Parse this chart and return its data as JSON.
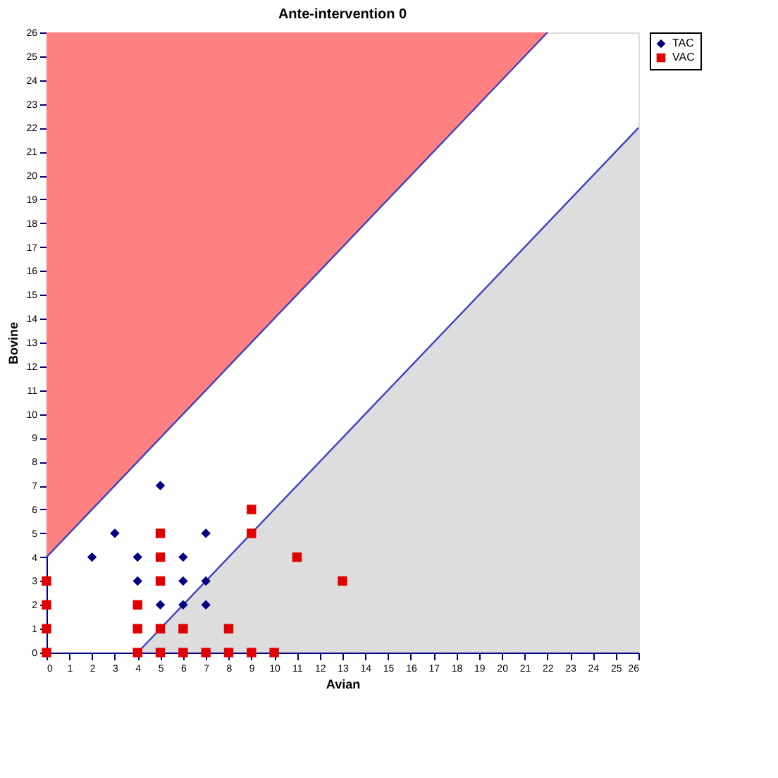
{
  "chart_data": {
    "type": "scatter",
    "title": "Ante-intervention 0",
    "xlabel": "Avian",
    "ylabel": "Bovine",
    "xlim": [
      0,
      26
    ],
    "ylim": [
      0,
      26
    ],
    "xticks": [
      0,
      1,
      2,
      3,
      4,
      5,
      6,
      7,
      8,
      9,
      10,
      11,
      12,
      13,
      14,
      15,
      16,
      17,
      18,
      19,
      20,
      21,
      22,
      23,
      24,
      25,
      26
    ],
    "yticks": [
      0,
      1,
      2,
      3,
      4,
      5,
      6,
      7,
      8,
      9,
      10,
      11,
      12,
      13,
      14,
      15,
      16,
      17,
      18,
      19,
      20,
      21,
      22,
      23,
      24,
      25,
      26
    ],
    "grid": false,
    "legend": "right",
    "series": [
      {
        "type": "line",
        "color": "#4040c0",
        "x": [
          0,
          22
        ],
        "values": [
          4,
          26
        ],
        "lower": [
          4,
          26
        ],
        "upper": [
          26,
          26
        ]
      },
      {
        "type": "line",
        "color": "#4040c0",
        "x": [
          4,
          26
        ],
        "values": [
          0,
          22
        ],
        "lower": [
          0,
          0
        ],
        "upper": [
          0,
          22
        ]
      },
      {
        "name": "TAC",
        "color": "#000080",
        "marker": "diamond",
        "x": [
          2,
          3,
          4,
          4,
          5,
          5,
          6,
          6,
          6,
          7,
          7,
          7
        ],
        "values": [
          4,
          5,
          4,
          3,
          7,
          2,
          4,
          3,
          2,
          5,
          3,
          2
        ]
      },
      {
        "name": "VAC",
        "color": "#e00000",
        "marker": "square",
        "x": [
          5,
          5,
          5,
          5,
          6,
          8,
          9,
          9,
          11,
          13,
          4,
          4,
          0,
          0,
          0,
          0,
          4,
          5,
          6,
          7,
          8,
          9,
          10
        ],
        "values": [
          5,
          4,
          3,
          1,
          1,
          1,
          6,
          5,
          4,
          3,
          2,
          1,
          3,
          2,
          1,
          0,
          0,
          0,
          0,
          0,
          0,
          0,
          0
        ]
      }
    ]
  }
}
